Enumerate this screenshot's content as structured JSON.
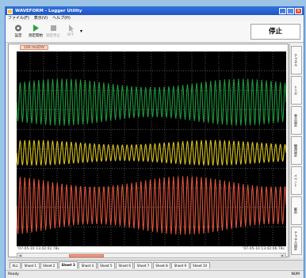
{
  "window": {
    "title": "WAVEFORM - Logger Utility",
    "controls": [
      "_",
      "□",
      "×"
    ]
  },
  "menu": [
    "ファイル(F)",
    "表示(V)",
    "ヘルプ(H)"
  ],
  "toolbar": {
    "buttons": [
      {
        "label": "設定",
        "icon": "gear-icon",
        "enabled": true
      },
      {
        "label": "測定開始",
        "icon": "play-icon",
        "enabled": true
      },
      {
        "label": "測定停止",
        "icon": "stop-icon",
        "enabled": false
      },
      {
        "label": "OFF",
        "icon": "cursor-icon",
        "enabled": false
      }
    ],
    "status": "停止"
  },
  "graph": {
    "scale_label": "100 ms/DIV",
    "start_time": "'07-05-10 13:42:02.78s",
    "end_time": "'07-05-10 13:42:06.78s",
    "traces": [
      {
        "color": "#1f9a3e",
        "center_row": 0.26,
        "amplitude": 0.12,
        "cycles": 58
      },
      {
        "color": "#d8c21c",
        "center_row": 0.52,
        "amplitude": 0.065,
        "cycles": 58
      },
      {
        "color": "#e0543a",
        "center_row": 0.79,
        "amplitude": 0.15,
        "cycles": 58
      }
    ],
    "grid_color": "#c8c8c8"
  },
  "side_tabs": [
    "チャネル",
    "トリガ",
    "表示設定",
    "観測設定",
    "イベント",
    "解析",
    "チャネル設定"
  ],
  "scroll": {
    "left": "◂",
    "right": "▸"
  },
  "sheets": {
    "all": "ALL",
    "items": [
      "Sheet 1",
      "Sheet 2",
      "Sheet 3",
      "Sheet 4",
      "Sheet 5",
      "Sheet 6",
      "Sheet 7",
      "Sheet 8",
      "Sheet 9",
      "Sheet 10"
    ],
    "active_index": 2
  },
  "statusbar": {
    "left": "Ready",
    "right": "NUM"
  }
}
